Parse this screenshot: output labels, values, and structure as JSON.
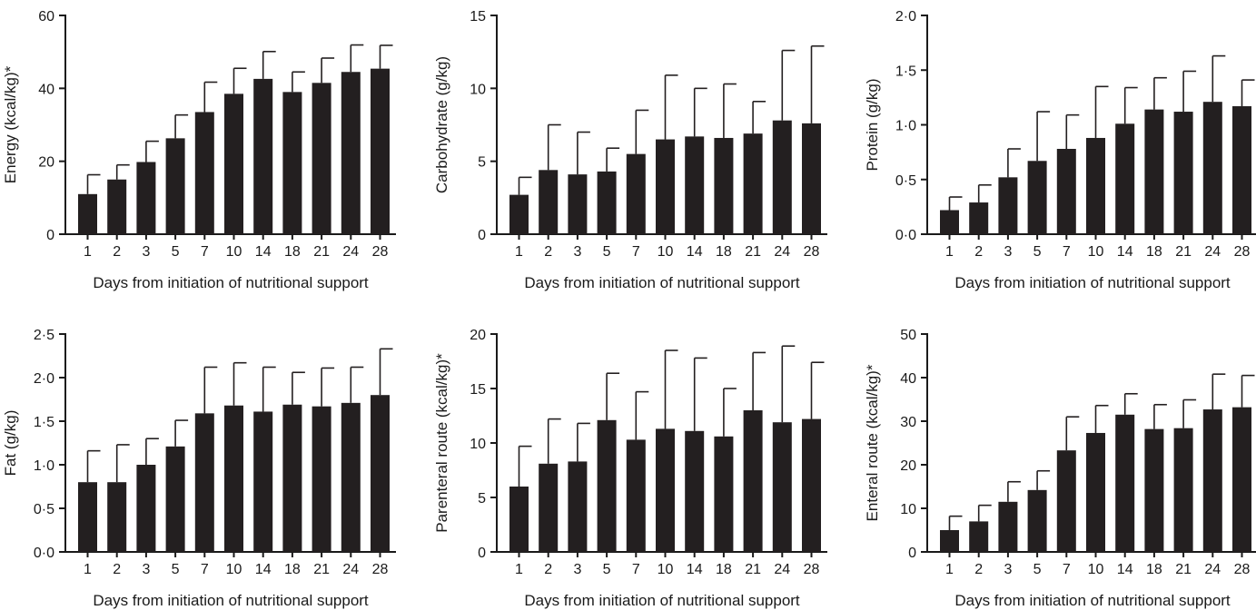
{
  "figure": {
    "colors": {
      "bar": "#231f20",
      "axis": "#1a1a1a"
    },
    "chart_data": [
      {
        "type": "bar",
        "title": "",
        "xlabel": "Days from initiation of nutritional support",
        "ylabel": "Energy (kcal/kg)*",
        "categories": [
          "1",
          "2",
          "3",
          "5",
          "7",
          "10",
          "14",
          "18",
          "21",
          "24",
          "28"
        ],
        "values": [
          11,
          15,
          19.8,
          26.3,
          33.5,
          38.5,
          42.6,
          39,
          41.5,
          44.5,
          45.4
        ],
        "errors": [
          5.3,
          4,
          5.7,
          6.4,
          8.2,
          7,
          7.5,
          5.5,
          6.8,
          7.4,
          6.4
        ],
        "ylim": [
          0,
          60
        ],
        "yticks": [
          0,
          20,
          40,
          60
        ],
        "ytick_labels": [
          "0",
          "20",
          "40",
          "60"
        ]
      },
      {
        "type": "bar",
        "title": "",
        "xlabel": "Days from initiation of nutritional support",
        "ylabel": "Carbohydrate (g/kg)",
        "categories": [
          "1",
          "2",
          "3",
          "5",
          "7",
          "10",
          "14",
          "18",
          "21",
          "24",
          "28"
        ],
        "values": [
          2.7,
          4.4,
          4.1,
          4.3,
          5.5,
          6.5,
          6.7,
          6.6,
          6.9,
          7.8,
          7.6
        ],
        "errors": [
          1.2,
          3.1,
          2.9,
          1.6,
          3,
          4.4,
          3.3,
          3.7,
          2.2,
          4.8,
          5.3
        ],
        "ylim": [
          0,
          15
        ],
        "yticks": [
          0,
          5,
          10,
          15
        ],
        "ytick_labels": [
          "0",
          "5",
          "10",
          "15"
        ]
      },
      {
        "type": "bar",
        "title": "",
        "xlabel": "Days from initiation of nutritional support",
        "ylabel": "Protein (g/kg)",
        "categories": [
          "1",
          "2",
          "3",
          "5",
          "7",
          "10",
          "14",
          "18",
          "21",
          "24",
          "28"
        ],
        "values": [
          0.22,
          0.29,
          0.52,
          0.67,
          0.78,
          0.88,
          1.01,
          1.14,
          1.12,
          1.21,
          1.17
        ],
        "errors": [
          0.12,
          0.16,
          0.26,
          0.45,
          0.31,
          0.47,
          0.33,
          0.29,
          0.37,
          0.42,
          0.24
        ],
        "ylim": [
          0,
          2
        ],
        "yticks": [
          0,
          0.5,
          1,
          1.5,
          2
        ],
        "ytick_labels": [
          "0·0",
          "0·5",
          "1·0",
          "1·5",
          "2·0"
        ]
      },
      {
        "type": "bar",
        "title": "",
        "xlabel": "Days from initiation of nutritional support",
        "ylabel": "Fat (g/kg)",
        "categories": [
          "1",
          "2",
          "3",
          "5",
          "7",
          "10",
          "14",
          "18",
          "21",
          "24",
          "28"
        ],
        "values": [
          0.8,
          0.8,
          1.0,
          1.21,
          1.59,
          1.68,
          1.61,
          1.69,
          1.67,
          1.71,
          1.8
        ],
        "errors": [
          0.36,
          0.43,
          0.3,
          0.3,
          0.53,
          0.49,
          0.51,
          0.37,
          0.44,
          0.41,
          0.53
        ],
        "ylim": [
          0,
          2.5
        ],
        "yticks": [
          0,
          0.5,
          1,
          1.5,
          2,
          2.5
        ],
        "ytick_labels": [
          "0·0",
          "0·5",
          "1·0",
          "1·5",
          "2·0",
          "2·5"
        ]
      },
      {
        "type": "bar",
        "title": "",
        "xlabel": "Days from initiation of nutritional support",
        "ylabel": "Parenteral route (kcal/kg)*",
        "categories": [
          "1",
          "2",
          "3",
          "5",
          "7",
          "10",
          "14",
          "18",
          "21",
          "24",
          "28"
        ],
        "values": [
          6,
          8.1,
          8.3,
          12.1,
          10.3,
          11.3,
          11.1,
          10.6,
          13,
          11.9,
          12.2
        ],
        "errors": [
          3.7,
          4.1,
          3.5,
          4.3,
          4.4,
          7.2,
          6.7,
          4.4,
          5.3,
          7,
          5.2
        ],
        "ylim": [
          0,
          20
        ],
        "yticks": [
          0,
          5,
          10,
          15,
          20
        ],
        "ytick_labels": [
          "0",
          "5",
          "10",
          "15",
          "20"
        ]
      },
      {
        "type": "bar",
        "title": "",
        "xlabel": "Days from initiation of nutritional support",
        "ylabel": "Enteral route (kcal/kg)*",
        "categories": [
          "1",
          "2",
          "3",
          "5",
          "7",
          "10",
          "14",
          "18",
          "21",
          "24",
          "28"
        ],
        "values": [
          5,
          7,
          11.5,
          14.2,
          23.3,
          27.3,
          31.5,
          28.2,
          28.4,
          32.7,
          33.2
        ],
        "errors": [
          3.2,
          3.7,
          4.6,
          4.4,
          7.7,
          6.3,
          4.8,
          5.6,
          6.5,
          8.1,
          7.3
        ],
        "ylim": [
          0,
          50
        ],
        "yticks": [
          0,
          10,
          20,
          30,
          40,
          50
        ],
        "ytick_labels": [
          "0",
          "10",
          "20",
          "30",
          "40",
          "50"
        ]
      }
    ]
  }
}
